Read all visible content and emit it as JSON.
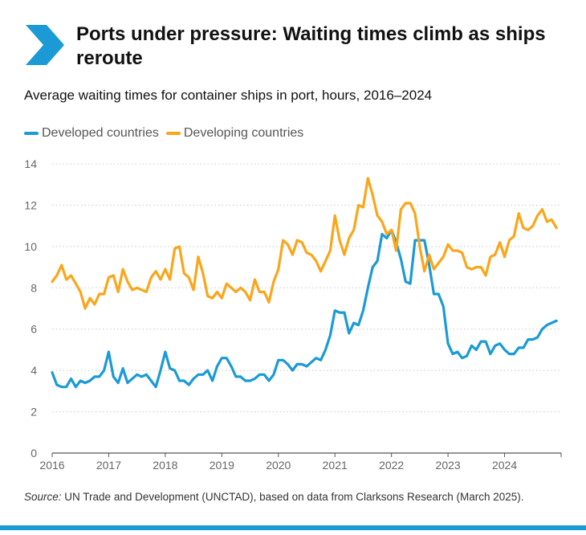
{
  "header": {
    "title": "Ports under pressure: Waiting times climb as ships reroute",
    "subtitle": "Average waiting times for container ships in port, hours, 2016–2024"
  },
  "colors": {
    "accent": "#1b9ad6",
    "developed": "#1b9ad6",
    "developing": "#f9a61a",
    "grid": "#c8c8c8",
    "axis": "#555555"
  },
  "icons": {
    "header_icon": "chevron-right-icon"
  },
  "source": {
    "label": "Source:",
    "text": "UN Trade and Development (UNCTAD), based on data from Clarksons Research (March 2025)."
  },
  "chart_data": {
    "type": "line",
    "title": "",
    "xlabel": "",
    "ylabel": "",
    "ylim": [
      0,
      14
    ],
    "xlim": [
      2016,
      2025
    ],
    "yticks": [
      0,
      2,
      4,
      6,
      8,
      10,
      12,
      14
    ],
    "xticks": [
      "2016",
      "2017",
      "2018",
      "2019",
      "2020",
      "2021",
      "2022",
      "2023",
      "2024"
    ],
    "grid": "horizontal dotted",
    "legend": "top-left",
    "x": [
      2016.0,
      2016.083,
      2016.167,
      2016.25,
      2016.333,
      2016.417,
      2016.5,
      2016.583,
      2016.667,
      2016.75,
      2016.833,
      2016.917,
      2017.0,
      2017.083,
      2017.167,
      2017.25,
      2017.333,
      2017.417,
      2017.5,
      2017.583,
      2017.667,
      2017.75,
      2017.833,
      2017.917,
      2018.0,
      2018.083,
      2018.167,
      2018.25,
      2018.333,
      2018.417,
      2018.5,
      2018.583,
      2018.667,
      2018.75,
      2018.833,
      2018.917,
      2019.0,
      2019.083,
      2019.167,
      2019.25,
      2019.333,
      2019.417,
      2019.5,
      2019.583,
      2019.667,
      2019.75,
      2019.833,
      2019.917,
      2020.0,
      2020.083,
      2020.167,
      2020.25,
      2020.333,
      2020.417,
      2020.5,
      2020.583,
      2020.667,
      2020.75,
      2020.833,
      2020.917,
      2021.0,
      2021.083,
      2021.167,
      2021.25,
      2021.333,
      2021.417,
      2021.5,
      2021.583,
      2021.667,
      2021.75,
      2021.833,
      2021.917,
      2022.0,
      2022.083,
      2022.167,
      2022.25,
      2022.333,
      2022.417,
      2022.5,
      2022.583,
      2022.667,
      2022.75,
      2022.833,
      2022.917,
      2023.0,
      2023.083,
      2023.167,
      2023.25,
      2023.333,
      2023.417,
      2023.5,
      2023.583,
      2023.667,
      2023.75,
      2023.833,
      2023.917,
      2024.0,
      2024.083,
      2024.167,
      2024.25,
      2024.333,
      2024.417,
      2024.5,
      2024.583,
      2024.667,
      2024.75,
      2024.833,
      2024.917
    ],
    "series": [
      {
        "name": "Developed countries",
        "color": "#1b9ad6",
        "values": [
          3.9,
          3.3,
          3.2,
          3.2,
          3.6,
          3.2,
          3.5,
          3.4,
          3.5,
          3.7,
          3.7,
          4.0,
          4.9,
          3.7,
          3.4,
          4.1,
          3.4,
          3.6,
          3.8,
          3.7,
          3.8,
          3.5,
          3.2,
          4.0,
          4.9,
          4.1,
          4.0,
          3.5,
          3.5,
          3.3,
          3.6,
          3.8,
          3.8,
          4.0,
          3.5,
          4.2,
          4.6,
          4.6,
          4.2,
          3.7,
          3.7,
          3.5,
          3.5,
          3.6,
          3.8,
          3.8,
          3.5,
          3.8,
          4.5,
          4.5,
          4.3,
          4.0,
          4.3,
          4.3,
          4.2,
          4.4,
          4.6,
          4.5,
          5.0,
          5.7,
          6.9,
          6.8,
          6.8,
          5.8,
          6.3,
          6.2,
          6.9,
          8.0,
          9.0,
          9.3,
          10.6,
          10.4,
          10.8,
          10.2,
          9.4,
          8.3,
          8.2,
          10.3,
          10.3,
          10.3,
          9.1,
          7.7,
          7.7,
          7.1,
          5.3,
          4.8,
          4.9,
          4.6,
          4.7,
          5.2,
          5.0,
          5.4,
          5.4,
          4.8,
          5.2,
          5.3,
          5.0,
          4.8,
          4.8,
          5.1,
          5.1,
          5.5,
          5.5,
          5.6,
          6.0,
          6.2,
          6.3,
          6.4
        ]
      },
      {
        "name": "Developing countries",
        "color": "#f9a61a",
        "values": [
          8.3,
          8.6,
          9.1,
          8.4,
          8.6,
          8.2,
          7.8,
          7.0,
          7.5,
          7.2,
          7.7,
          7.7,
          8.5,
          8.6,
          7.8,
          8.9,
          8.3,
          7.9,
          8.0,
          7.9,
          7.8,
          8.5,
          8.8,
          8.4,
          8.9,
          8.4,
          9.9,
          10.0,
          8.7,
          8.5,
          7.9,
          9.5,
          8.7,
          7.6,
          7.5,
          7.8,
          7.5,
          8.2,
          8.0,
          7.8,
          8.0,
          7.8,
          7.4,
          8.4,
          7.8,
          7.8,
          7.3,
          8.3,
          8.9,
          10.3,
          10.1,
          9.6,
          10.3,
          10.2,
          9.7,
          9.6,
          9.3,
          8.8,
          9.3,
          9.8,
          11.5,
          10.3,
          9.6,
          10.4,
          10.8,
          12.0,
          11.9,
          13.3,
          12.5,
          11.5,
          11.2,
          10.6,
          10.8,
          9.8,
          11.8,
          12.1,
          12.1,
          11.6,
          10.0,
          8.8,
          9.6,
          8.9,
          9.2,
          9.5,
          10.1,
          9.8,
          9.8,
          9.7,
          9.0,
          8.9,
          9.0,
          9.0,
          8.6,
          9.5,
          9.6,
          10.2,
          9.5,
          10.3,
          10.5,
          11.6,
          10.9,
          10.8,
          11.0,
          11.5,
          11.8,
          11.2,
          11.3,
          10.9
        ]
      }
    ]
  }
}
